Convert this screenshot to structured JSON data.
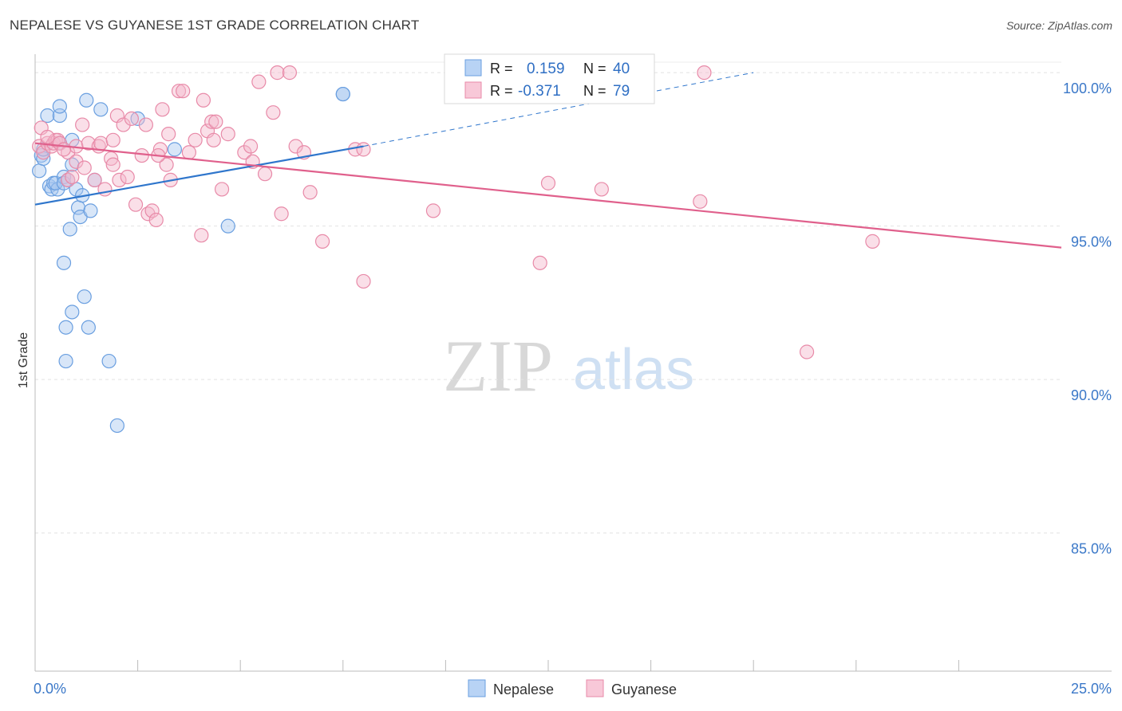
{
  "chart_data": {
    "type": "scatter",
    "title": "NEPALESE VS GUYANESE 1ST GRADE CORRELATION CHART",
    "source": "Source: ZipAtlas.com",
    "xlabel": "",
    "ylabel": "1st Grade",
    "xlim": [
      0,
      25
    ],
    "ylim": [
      80.5,
      100.6
    ],
    "x_tick_labels": [
      {
        "value": 0,
        "label": "0.0%"
      },
      {
        "value": 25,
        "label": "25.0%"
      }
    ],
    "x_minor_ticks": [
      2.5,
      5,
      7.5,
      10,
      12.5,
      15,
      17.5,
      20,
      22.5
    ],
    "y_ticks": [
      {
        "value": 100,
        "label": "100.0%"
      },
      {
        "value": 95,
        "label": "95.0%"
      },
      {
        "value": 90,
        "label": "90.0%"
      },
      {
        "value": 85,
        "label": "85.0%"
      }
    ],
    "watermark": {
      "zip": "ZIP",
      "atlas": "atlas"
    },
    "legend_stats": [
      {
        "r_label": "R =",
        "r_value": "0.159",
        "n_label": "N =",
        "n_value": "40"
      },
      {
        "r_label": "R =",
        "r_value": "-0.371",
        "n_label": "N =",
        "n_value": "79"
      }
    ],
    "series": [
      {
        "name": "Nepalese",
        "color": "#6a9fe0",
        "fill": "#a8c8f0",
        "line_color": "#2f76cc",
        "trend": {
          "x0": 0,
          "y0": 95.7,
          "x1": 8,
          "y1": 97.6,
          "dash_x1": 17.5,
          "dash_y1": 100.0
        },
        "points": [
          [
            0.1,
            96.8
          ],
          [
            0.15,
            97.3
          ],
          [
            0.2,
            97.2
          ],
          [
            0.3,
            98.6
          ],
          [
            0.35,
            96.3
          ],
          [
            0.4,
            96.2
          ],
          [
            0.45,
            96.4
          ],
          [
            0.55,
            96.2
          ],
          [
            0.5,
            96.4
          ],
          [
            0.6,
            98.6
          ],
          [
            0.6,
            98.9
          ],
          [
            0.7,
            96.6
          ],
          [
            0.7,
            96.4
          ],
          [
            0.75,
            91.7
          ],
          [
            0.7,
            93.8
          ],
          [
            0.75,
            90.6
          ],
          [
            0.8,
            96.5
          ],
          [
            0.85,
            94.9
          ],
          [
            0.9,
            97.0
          ],
          [
            0.9,
            92.2
          ],
          [
            1.0,
            96.2
          ],
          [
            1.05,
            95.6
          ],
          [
            1.1,
            95.3
          ],
          [
            1.15,
            96.0
          ],
          [
            1.2,
            92.7
          ],
          [
            1.25,
            99.1
          ],
          [
            1.3,
            91.7
          ],
          [
            1.35,
            95.5
          ],
          [
            1.45,
            96.5
          ],
          [
            1.6,
            98.8
          ],
          [
            1.8,
            90.6
          ],
          [
            2.0,
            88.5
          ],
          [
            2.5,
            98.5
          ],
          [
            3.4,
            97.5
          ],
          [
            4.7,
            95.0
          ],
          [
            7.5,
            99.3
          ],
          [
            7.5,
            99.3
          ],
          [
            0.2,
            97.5
          ],
          [
            0.9,
            97.8
          ],
          [
            0.6,
            97.7
          ]
        ]
      },
      {
        "name": "Guyanese",
        "color": "#e88aa8",
        "fill": "#f5b8cc",
        "line_color": "#e0608c",
        "trend": {
          "x0": 0,
          "y0": 97.7,
          "x1": 25,
          "y1": 94.3
        },
        "points": [
          [
            0.1,
            97.6
          ],
          [
            0.15,
            98.2
          ],
          [
            0.2,
            97.4
          ],
          [
            0.3,
            97.7
          ],
          [
            0.4,
            97.6
          ],
          [
            0.45,
            97.7
          ],
          [
            0.5,
            97.8
          ],
          [
            0.55,
            97.8
          ],
          [
            0.6,
            97.7
          ],
          [
            0.8,
            97.4
          ],
          [
            0.8,
            96.5
          ],
          [
            0.9,
            96.6
          ],
          [
            1.0,
            97.1
          ],
          [
            1.0,
            97.6
          ],
          [
            1.15,
            98.3
          ],
          [
            1.2,
            96.9
          ],
          [
            1.3,
            97.7
          ],
          [
            1.45,
            96.5
          ],
          [
            1.55,
            97.6
          ],
          [
            1.6,
            97.7
          ],
          [
            1.7,
            96.2
          ],
          [
            1.85,
            97.2
          ],
          [
            1.9,
            97.0
          ],
          [
            2.0,
            98.6
          ],
          [
            2.05,
            96.5
          ],
          [
            2.15,
            98.3
          ],
          [
            2.25,
            96.6
          ],
          [
            2.35,
            98.5
          ],
          [
            2.45,
            95.7
          ],
          [
            2.6,
            97.3
          ],
          [
            2.7,
            98.3
          ],
          [
            2.75,
            95.4
          ],
          [
            2.85,
            95.5
          ],
          [
            2.95,
            95.2
          ],
          [
            3.05,
            97.5
          ],
          [
            3.1,
            98.8
          ],
          [
            3.2,
            97.0
          ],
          [
            3.25,
            98.0
          ],
          [
            3.3,
            96.5
          ],
          [
            3.5,
            99.4
          ],
          [
            3.6,
            99.4
          ],
          [
            3.75,
            97.4
          ],
          [
            3.9,
            97.8
          ],
          [
            4.05,
            94.7
          ],
          [
            4.1,
            99.1
          ],
          [
            4.2,
            98.1
          ],
          [
            4.3,
            98.4
          ],
          [
            4.35,
            97.8
          ],
          [
            4.4,
            98.4
          ],
          [
            4.55,
            96.2
          ],
          [
            4.7,
            98.0
          ],
          [
            5.1,
            97.4
          ],
          [
            5.25,
            97.6
          ],
          [
            5.3,
            97.1
          ],
          [
            5.45,
            99.7
          ],
          [
            5.6,
            96.7
          ],
          [
            5.8,
            98.7
          ],
          [
            5.9,
            100.0
          ],
          [
            6.0,
            95.4
          ],
          [
            6.2,
            100.0
          ],
          [
            6.35,
            97.6
          ],
          [
            6.55,
            97.4
          ],
          [
            6.7,
            96.1
          ],
          [
            7.0,
            94.5
          ],
          [
            7.8,
            97.5
          ],
          [
            8.0,
            97.5
          ],
          [
            8.0,
            93.2
          ],
          [
            9.7,
            95.5
          ],
          [
            12.3,
            93.8
          ],
          [
            12.5,
            96.4
          ],
          [
            13.8,
            96.2
          ],
          [
            16.2,
            95.8
          ],
          [
            16.3,
            100.0
          ],
          [
            18.8,
            90.9
          ],
          [
            20.4,
            94.5
          ],
          [
            0.3,
            97.9
          ],
          [
            0.7,
            97.5
          ],
          [
            1.9,
            97.8
          ],
          [
            3.0,
            97.3
          ]
        ]
      }
    ]
  }
}
